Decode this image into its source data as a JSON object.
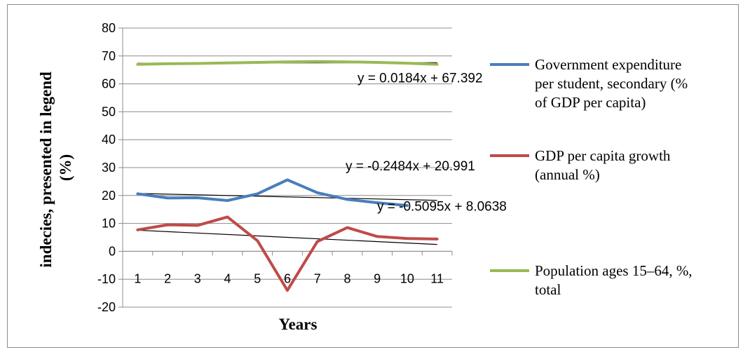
{
  "chart_data": {
    "type": "line",
    "xlabel": "Years",
    "ylabel": "indecies, presented in legend (%)",
    "ylabel_lines": [
      "indecies, presented in legend",
      "(%)"
    ],
    "ylim": [
      -20,
      80
    ],
    "yticks": [
      80,
      70,
      60,
      50,
      40,
      30,
      20,
      10,
      0,
      -10,
      -20
    ],
    "categories": [
      "1",
      "2",
      "3",
      "4",
      "5",
      "6",
      "7",
      "8",
      "9",
      "10",
      "11"
    ],
    "grid": true,
    "legend_position": "right",
    "series": [
      {
        "name": "Government expenditure per student, secondary (% of GDP per capita)",
        "legend_lines": [
          "Government expenditure",
          "per student, secondary (%",
          "of GDP per capita)"
        ],
        "color": "#4a7ebb",
        "values": [
          20.6,
          19.1,
          19.2,
          18.2,
          20.6,
          25.6,
          21.0,
          18.6,
          17.4,
          16.4,
          null
        ],
        "trendline": {
          "slope": -0.2484,
          "intercept": 20.991,
          "equation": "y = -0.2484x + 20.991"
        }
      },
      {
        "name": "GDP per capita growth (annual %)",
        "legend_lines": [
          "GDP per capita growth",
          "(annual %)"
        ],
        "color": "#be4b48",
        "values": [
          7.7,
          9.5,
          9.3,
          12.3,
          3.8,
          -14.0,
          3.5,
          8.5,
          5.3,
          4.6,
          4.4
        ],
        "trendline": {
          "slope": -0.5095,
          "intercept": 8.0638,
          "equation": "y = -0.5095x + 8.0638"
        }
      },
      {
        "name": "Population ages 15–64, %, total",
        "legend_lines": [
          "Population ages 15–64, %,",
          "total"
        ],
        "color": "#98b954",
        "values": [
          67.0,
          67.2,
          67.3,
          67.5,
          67.7,
          67.9,
          68.0,
          67.9,
          67.7,
          67.4,
          67.0
        ],
        "trendline": {
          "slope": 0.0184,
          "intercept": 67.392,
          "equation": "y = 0.0184x + 67.392"
        }
      }
    ]
  }
}
